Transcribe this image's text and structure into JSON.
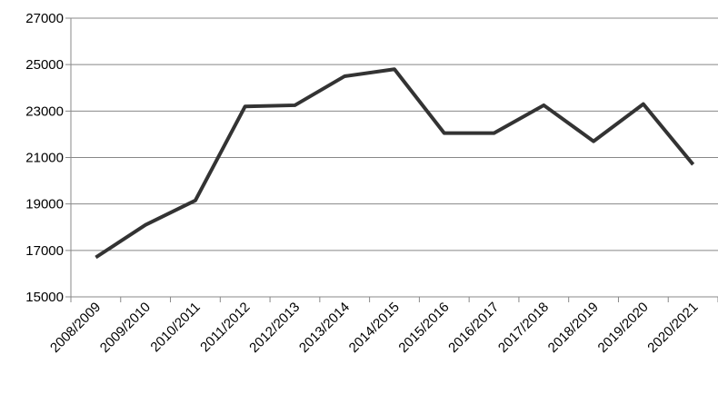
{
  "chart_data": {
    "type": "line",
    "categories": [
      "2008/2009",
      "2009/2010",
      "2010/2011",
      "2011/2012",
      "2012/2013",
      "2013/2014",
      "2014/2015",
      "2015/2016",
      "2016/2017",
      "2017/2018",
      "2018/2019",
      "2019/2020",
      "2020/2021"
    ],
    "values": [
      16700,
      18100,
      19150,
      23200,
      23250,
      24500,
      24800,
      22050,
      22050,
      23250,
      21700,
      23300,
      20700
    ],
    "color": "#333333",
    "ylim": [
      15000,
      27000
    ],
    "yticks": [
      15000,
      17000,
      19000,
      21000,
      23000,
      25000,
      27000
    ],
    "grid": true
  }
}
